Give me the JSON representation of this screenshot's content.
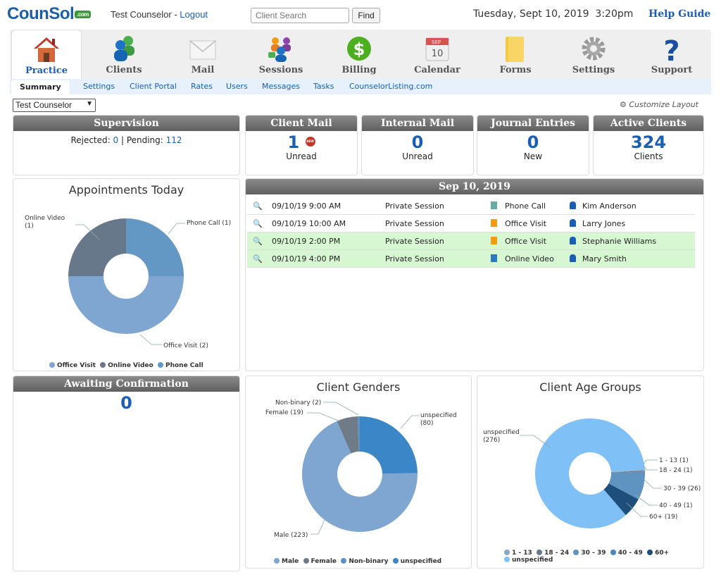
{
  "header": {
    "logo": "CounSol",
    "logo_suffix": ".com",
    "user_name": "Test Counselor",
    "separator": " - ",
    "logout": "Logout",
    "search_placeholder": "Client Search",
    "find": "Find",
    "datetime": "Tuesday, Sept 10, 2019  3:20pm",
    "help": "Help Guide"
  },
  "nav": [
    {
      "label": "Practice",
      "icon": "house-icon",
      "active": true
    },
    {
      "label": "Clients",
      "icon": "people-icon"
    },
    {
      "label": "Mail",
      "icon": "envelope-icon"
    },
    {
      "label": "Sessions",
      "icon": "group-icon"
    },
    {
      "label": "Billing",
      "icon": "dollar-icon"
    },
    {
      "label": "Calendar",
      "icon": "calendar-icon",
      "cal_month": "SEP",
      "cal_day": "10"
    },
    {
      "label": "Forms",
      "icon": "folder-icon"
    },
    {
      "label": "Settings",
      "icon": "gear-icon"
    },
    {
      "label": "Support",
      "icon": "question-icon"
    }
  ],
  "subnav": [
    "Summary",
    "Settings",
    "Client Portal",
    "Rates",
    "Users",
    "Messages",
    "Tasks",
    "CounselorListing.com"
  ],
  "counselor_select": "Test Counselor",
  "customize": "Customize Layout",
  "supervision": {
    "title": "Supervision",
    "rejected_label": "Rejected: ",
    "rejected": "0",
    "sep": " | Pending: ",
    "pending": "112"
  },
  "client_mail": {
    "title": "Client Mail",
    "value": "1",
    "badge": "NEW",
    "label": "Unread"
  },
  "internal_mail": {
    "title": "Internal Mail",
    "value": "0",
    "label": "Unread"
  },
  "journal": {
    "title": "Journal Entries",
    "value": "0",
    "label": "New"
  },
  "active_clients": {
    "title": "Active Clients",
    "value": "324",
    "label": "Clients"
  },
  "appointments_today": {
    "title": "Appointments Today",
    "legend": [
      "Office Visit",
      "Online Video",
      "Phone Call"
    ],
    "labels": [
      "Phone Call (1)",
      "Online Video\n(1)",
      "Office Visit (2)"
    ]
  },
  "schedule": {
    "date": "Sep 10, 2019",
    "rows": [
      {
        "time": "09/10/19 9:00 AM",
        "type": "Private Session",
        "mode": "Phone Call",
        "client": "Kim Anderson",
        "green": false
      },
      {
        "time": "09/10/19 10:00 AM",
        "type": "Private Session",
        "mode": "Office Visit",
        "client": "Larry Jones",
        "green": false
      },
      {
        "time": "09/10/19 2:00 PM",
        "type": "Private Session",
        "mode": "Office Visit",
        "client": "Stephanie Williams",
        "green": true
      },
      {
        "time": "09/10/19 4:00 PM",
        "type": "Private Session",
        "mode": "Online Video",
        "client": "Mary Smith",
        "green": true
      }
    ]
  },
  "awaiting": {
    "title": "Awaiting Confirmation",
    "value": "0"
  },
  "client_genders": {
    "title": "Client Genders",
    "legend": [
      "Male",
      "Female",
      "Non-binary",
      "unspecified"
    ],
    "labels": [
      "Non-binary (2)",
      "Female (19)",
      "unspecified\n(80)",
      "Male (223)"
    ]
  },
  "client_ages": {
    "title": "Client Age Groups",
    "legend": [
      "1 - 13",
      "18 - 24",
      "30 - 39",
      "40 - 49",
      "60+",
      "unspecified"
    ],
    "labels": [
      "unspecified\n(276)",
      "1 - 13 (1)",
      "18 - 24 (1)",
      "30 - 39 (26)",
      "40 - 49 (1)",
      "60+ (19)"
    ]
  },
  "chart_data": [
    {
      "type": "pie",
      "title": "Appointments Today",
      "categories": [
        "Phone Call",
        "Office Visit",
        "Online Video"
      ],
      "values": [
        1,
        2,
        1
      ],
      "colors": [
        "#6398c4",
        "#7ea6d1",
        "#66788a"
      ]
    },
    {
      "type": "pie",
      "title": "Client Genders",
      "categories": [
        "unspecified",
        "Male",
        "Female",
        "Non-binary"
      ],
      "values": [
        80,
        223,
        19,
        2
      ],
      "colors": [
        "#3a86c6",
        "#7ea6d1",
        "#6f7c88",
        "#5b93c4"
      ]
    },
    {
      "type": "pie",
      "title": "Client Age Groups",
      "categories": [
        "1 - 13",
        "18 - 24",
        "30 - 39",
        "40 - 49",
        "60+",
        "unspecified"
      ],
      "values": [
        1,
        1,
        26,
        1,
        19,
        276
      ],
      "colors": [
        "#8aa6c2",
        "#66788a",
        "#5f93c0",
        "#4a86c0",
        "#1e4f7a",
        "#7fc0f6"
      ]
    }
  ]
}
